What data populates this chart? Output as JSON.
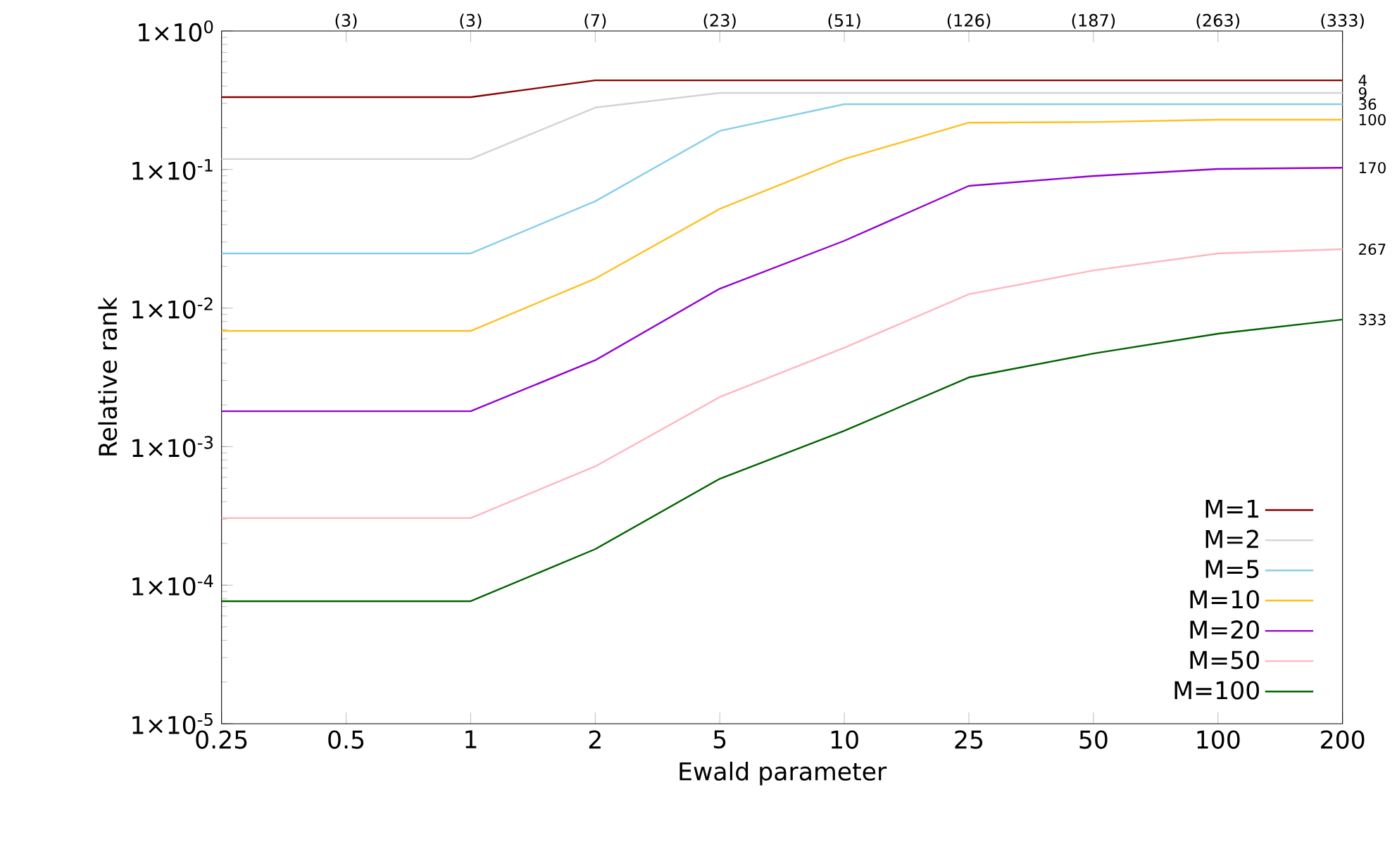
{
  "chart_data": {
    "type": "line",
    "xlabel": "Ewald parameter",
    "ylabel": "Relative rank",
    "categories": [
      "0.25",
      "0.5",
      "1",
      "2",
      "5",
      "10",
      "25",
      "50",
      "100",
      "200"
    ],
    "log": "y",
    "ylim": [
      1e-05,
      1
    ],
    "yticks": [
      {
        "value": 1e-05,
        "label": "1×10$^{-5}$"
      },
      {
        "value": 0.0001,
        "label": "1×10$^{-4}$"
      },
      {
        "value": 0.001,
        "label": "1×10$^{-3}$"
      },
      {
        "value": 0.01,
        "label": "1×10$^{-2}$"
      },
      {
        "value": 0.1,
        "label": "1×10$^{-1}$"
      },
      {
        "value": 1,
        "label": "1×10$^{0}$"
      }
    ],
    "annotations": [
      "(3)",
      "(3)",
      "(7)",
      "(23)",
      "(51)",
      "(126)",
      "(187)",
      "(263)",
      "(333)",
      {
        "text": "4",
        "x": "200",
        "y": 0.44
      },
      {
        "text": "9",
        "x": "200",
        "y": 0.357
      },
      {
        "text": "36",
        "x": "200",
        "y": 0.296
      },
      {
        "text": "100",
        "x": "200",
        "y": 0.229
      },
      {
        "text": "170",
        "x": "200",
        "y": 0.103
      },
      {
        "text": "267",
        "x": "200",
        "y": 0.0266
      },
      {
        "text": "333",
        "x": "200",
        "y": 0.00826
      }
    ],
    "legend": "bottom right",
    "grid": false,
    "marker": "none",
    "line_style": "solid",
    "series": [
      {
        "name": "M=1",
        "color": "#8b0000",
        "values": [
          0.333,
          0.333,
          0.333,
          0.44,
          0.44,
          0.44,
          0.44,
          0.44,
          0.44,
          0.44
        ]
      },
      {
        "name": "M=2",
        "color": "#d3d3d3",
        "values": [
          0.119,
          0.119,
          0.119,
          0.28,
          0.357,
          0.357,
          0.357,
          0.357,
          0.357,
          0.357
        ]
      },
      {
        "name": "M=5",
        "color": "#87ceeb",
        "values": [
          0.0248,
          0.0248,
          0.0248,
          0.059,
          0.19,
          0.296,
          0.296,
          0.296,
          0.296,
          0.296
        ]
      },
      {
        "name": "M=10",
        "color": "#ffc020",
        "values": [
          0.00684,
          0.00684,
          0.00684,
          0.0163,
          0.052,
          0.119,
          0.218,
          0.22,
          0.229,
          0.229
        ]
      },
      {
        "name": "M=20",
        "color": "#9400d3",
        "values": [
          0.0018,
          0.0018,
          0.0018,
          0.0042,
          0.0138,
          0.0306,
          0.0762,
          0.0898,
          0.101,
          0.103
        ]
      },
      {
        "name": "M=50",
        "color": "#ffb6c1",
        "values": [
          0.000305,
          0.000305,
          0.000305,
          0.00072,
          0.00228,
          0.00517,
          0.0126,
          0.0187,
          0.0248,
          0.0266
        ]
      },
      {
        "name": "M=100",
        "color": "#006400",
        "values": [
          7.66e-05,
          7.66e-05,
          7.66e-05,
          0.000182,
          0.000586,
          0.0013,
          0.00316,
          0.0047,
          0.00653,
          0.00826
        ]
      }
    ]
  }
}
